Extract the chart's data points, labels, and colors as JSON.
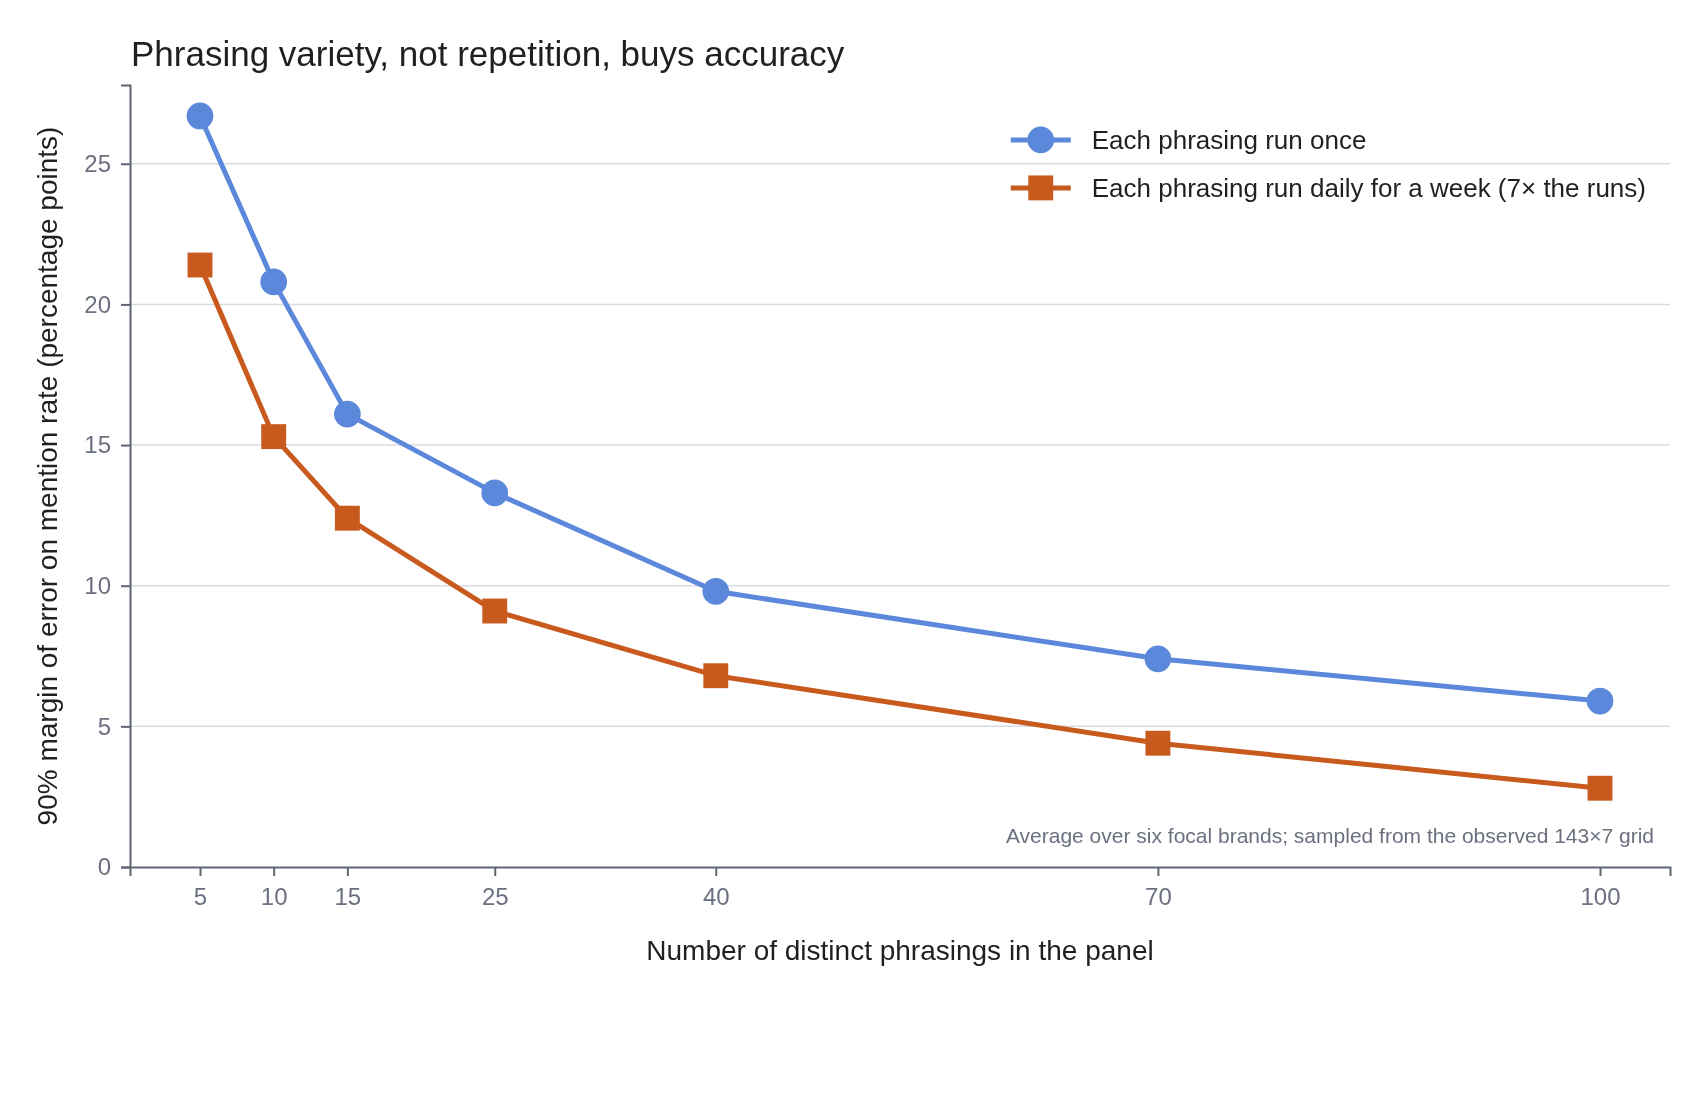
{
  "chart_data": {
    "type": "line",
    "title": "Phrasing variety, not repetition, buys accuracy",
    "xlabel": "Number of distinct phrasings in the panel",
    "ylabel": "90% margin of error on mention rate (percentage points)",
    "x": [
      5,
      10,
      15,
      25,
      40,
      70,
      100
    ],
    "series": [
      {
        "name": "Each phrasing run once",
        "color": "#5b88db",
        "marker": "circle",
        "values": [
          26.7,
          20.8,
          16.1,
          13.3,
          9.8,
          7.4,
          5.9
        ]
      },
      {
        "name": "Each phrasing run daily for a week (7× the runs)",
        "color": "#c85a1e",
        "marker": "square",
        "values": [
          21.4,
          15.3,
          12.4,
          9.1,
          6.8,
          4.4,
          2.8
        ]
      }
    ],
    "xlim": [
      0.25,
      104.75
    ],
    "xticks": [
      5,
      10,
      15,
      25,
      40,
      70,
      100
    ],
    "ylim": [
      0,
      27.8
    ],
    "yticks": [
      0,
      5,
      10,
      15,
      20,
      25
    ],
    "grid": "y",
    "legend": "top right",
    "annotations": [
      "Average over six focal brands; sampled from the observed 143×7 grid"
    ]
  }
}
